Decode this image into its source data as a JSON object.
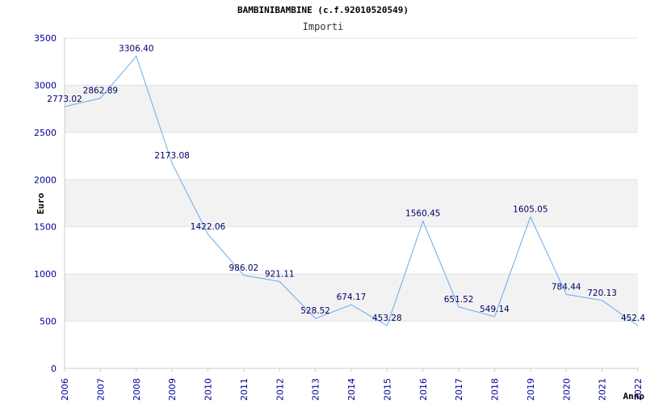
{
  "title": "BAMBINIBAMBINE (c.f.92010520549)",
  "subtitle": "Importi",
  "chart_data": {
    "type": "line",
    "title": "BAMBINIBAMBINE (c.f.92010520549)",
    "subtitle": "Importi",
    "xlabel": "Anno",
    "ylabel": "Euro",
    "categories": [
      "2006",
      "2007",
      "2008",
      "2009",
      "2010",
      "2011",
      "2012",
      "2013",
      "2014",
      "2015",
      "2016",
      "2017",
      "2018",
      "2019",
      "2020",
      "2021",
      "2022"
    ],
    "series": [
      {
        "values": [
          2773.02,
          2862.89,
          3306.4,
          2173.08,
          1422.06,
          986.02,
          921.11,
          528.52,
          674.17,
          453.28,
          1560.45,
          651.52,
          549.14,
          1605.05,
          784.44,
          720.13,
          452.4
        ],
        "labels": [
          "2773.02",
          "2862.89",
          "3306.40",
          "2173.08",
          "1422.06",
          "986.02",
          "921.11",
          "528.52",
          "674.17",
          "453.28",
          "1560.45",
          "651.52",
          "549.14",
          "1605.05",
          "784.44",
          "720.13",
          "452.4"
        ]
      }
    ],
    "ylim": [
      0,
      3500
    ],
    "yticks": [
      "0",
      "500",
      "1000",
      "1500",
      "2000",
      "2500",
      "3000",
      "3500"
    ],
    "grid": true,
    "colors": {
      "line": "#66aaee",
      "band": "#f2f2f2",
      "tick": "#000099",
      "label": "#000066"
    }
  }
}
